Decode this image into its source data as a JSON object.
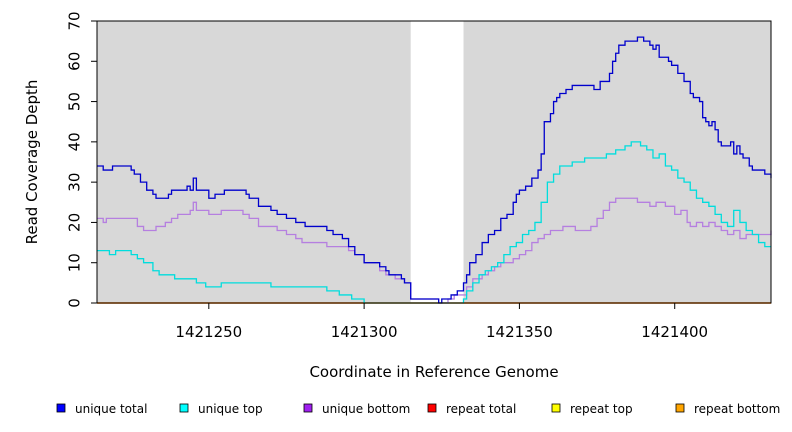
{
  "chart_data": {
    "type": "line",
    "title": "",
    "xlabel": "Coordinate in Reference Genome",
    "ylabel": "Read Coverage Depth",
    "xlim": [
      1421214,
      1421431
    ],
    "ylim": [
      0,
      70
    ],
    "x_ticks": [
      1421250,
      1421300,
      1421350,
      1421400
    ],
    "y_ticks": [
      0,
      10,
      20,
      30,
      40,
      50,
      60,
      70
    ],
    "shaded_regions": [
      [
        1421214,
        1421315
      ],
      [
        1421332,
        1421431
      ]
    ],
    "grid": false,
    "legend_position": "bottom",
    "series": [
      {
        "name": "unique total",
        "color": "#0000cc",
        "legend_color": "#0000ff",
        "points": [
          [
            1421214,
            34
          ],
          [
            1421216,
            33
          ],
          [
            1421219,
            34
          ],
          [
            1421225,
            33
          ],
          [
            1421226,
            32
          ],
          [
            1421228,
            30
          ],
          [
            1421230,
            28
          ],
          [
            1421232,
            27
          ],
          [
            1421233,
            26
          ],
          [
            1421237,
            27
          ],
          [
            1421238,
            28
          ],
          [
            1421242,
            28
          ],
          [
            1421243,
            29
          ],
          [
            1421244,
            28
          ],
          [
            1421245,
            31
          ],
          [
            1421246,
            28
          ],
          [
            1421250,
            26
          ],
          [
            1421252,
            27
          ],
          [
            1421255,
            28
          ],
          [
            1421262,
            27
          ],
          [
            1421263,
            26
          ],
          [
            1421265,
            26
          ],
          [
            1421266,
            24
          ],
          [
            1421270,
            23
          ],
          [
            1421272,
            22
          ],
          [
            1421275,
            21
          ],
          [
            1421278,
            20
          ],
          [
            1421281,
            19
          ],
          [
            1421285,
            19
          ],
          [
            1421288,
            18
          ],
          [
            1421290,
            17
          ],
          [
            1421293,
            16
          ],
          [
            1421295,
            14
          ],
          [
            1421297,
            12
          ],
          [
            1421300,
            10
          ],
          [
            1421303,
            10
          ],
          [
            1421305,
            9
          ],
          [
            1421307,
            8
          ],
          [
            1421308,
            7
          ],
          [
            1421310,
            7
          ],
          [
            1421312,
            6
          ],
          [
            1421313,
            5
          ],
          [
            1421315,
            1
          ],
          [
            1421323,
            1
          ],
          [
            1421324,
            0
          ],
          [
            1421325,
            1
          ],
          [
            1421327,
            1
          ],
          [
            1421328,
            2
          ],
          [
            1421330,
            3
          ],
          [
            1421332,
            5
          ],
          [
            1421333,
            7
          ],
          [
            1421334,
            10
          ],
          [
            1421336,
            12
          ],
          [
            1421338,
            15
          ],
          [
            1421340,
            17
          ],
          [
            1421342,
            18
          ],
          [
            1421344,
            21
          ],
          [
            1421346,
            22
          ],
          [
            1421348,
            25
          ],
          [
            1421349,
            27
          ],
          [
            1421350,
            28
          ],
          [
            1421352,
            29
          ],
          [
            1421354,
            31
          ],
          [
            1421356,
            33
          ],
          [
            1421357,
            37
          ],
          [
            1421358,
            45
          ],
          [
            1421360,
            47
          ],
          [
            1421361,
            50
          ],
          [
            1421362,
            51
          ],
          [
            1421363,
            52
          ],
          [
            1421365,
            53
          ],
          [
            1421367,
            54
          ],
          [
            1421369,
            54
          ],
          [
            1421374,
            53
          ],
          [
            1421376,
            55
          ],
          [
            1421378,
            55
          ],
          [
            1421379,
            57
          ],
          [
            1421380,
            60
          ],
          [
            1421381,
            62
          ],
          [
            1421382,
            64
          ],
          [
            1421384,
            65
          ],
          [
            1421386,
            65
          ],
          [
            1421388,
            66
          ],
          [
            1421390,
            65
          ],
          [
            1421392,
            64
          ],
          [
            1421393,
            63
          ],
          [
            1421394,
            64
          ],
          [
            1421395,
            61
          ],
          [
            1421398,
            60
          ],
          [
            1421399,
            59
          ],
          [
            1421401,
            57
          ],
          [
            1421403,
            55
          ],
          [
            1421405,
            52
          ],
          [
            1421406,
            51
          ],
          [
            1421408,
            50
          ],
          [
            1421409,
            46
          ],
          [
            1421410,
            45
          ],
          [
            1421411,
            44
          ],
          [
            1421412,
            45
          ],
          [
            1421413,
            43
          ],
          [
            1421414,
            40
          ],
          [
            1421415,
            39
          ],
          [
            1421416,
            39
          ],
          [
            1421418,
            40
          ],
          [
            1421419,
            37
          ],
          [
            1421420,
            39
          ],
          [
            1421421,
            37
          ],
          [
            1421422,
            36
          ],
          [
            1421424,
            34
          ],
          [
            1421425,
            33
          ],
          [
            1421427,
            33
          ],
          [
            1421429,
            32
          ],
          [
            1421431,
            31
          ]
        ]
      },
      {
        "name": "unique top",
        "color": "#00dddd",
        "legend_color": "#00ffff",
        "points": [
          [
            1421214,
            13
          ],
          [
            1421218,
            12
          ],
          [
            1421220,
            13
          ],
          [
            1421225,
            12
          ],
          [
            1421227,
            11
          ],
          [
            1421229,
            10
          ],
          [
            1421232,
            8
          ],
          [
            1421234,
            7
          ],
          [
            1421239,
            6
          ],
          [
            1421246,
            5
          ],
          [
            1421249,
            4
          ],
          [
            1421254,
            5
          ],
          [
            1421270,
            4
          ],
          [
            1421280,
            4
          ],
          [
            1421288,
            3
          ],
          [
            1421292,
            2
          ],
          [
            1421296,
            1
          ],
          [
            1421300,
            0
          ],
          [
            1421310,
            0
          ],
          [
            1421315,
            0
          ],
          [
            1421332,
            1
          ],
          [
            1421333,
            3
          ],
          [
            1421335,
            5
          ],
          [
            1421337,
            7
          ],
          [
            1421339,
            8
          ],
          [
            1421341,
            9
          ],
          [
            1421343,
            10
          ],
          [
            1421345,
            12
          ],
          [
            1421347,
            14
          ],
          [
            1421349,
            15
          ],
          [
            1421351,
            17
          ],
          [
            1421353,
            18
          ],
          [
            1421355,
            20
          ],
          [
            1421357,
            25
          ],
          [
            1421359,
            30
          ],
          [
            1421361,
            32
          ],
          [
            1421363,
            34
          ],
          [
            1421367,
            35
          ],
          [
            1421371,
            36
          ],
          [
            1421375,
            36
          ],
          [
            1421378,
            37
          ],
          [
            1421381,
            38
          ],
          [
            1421384,
            39
          ],
          [
            1421386,
            40
          ],
          [
            1421389,
            39
          ],
          [
            1421391,
            38
          ],
          [
            1421393,
            36
          ],
          [
            1421395,
            37
          ],
          [
            1421397,
            34
          ],
          [
            1421399,
            33
          ],
          [
            1421401,
            31
          ],
          [
            1421403,
            30
          ],
          [
            1421405,
            28
          ],
          [
            1421407,
            26
          ],
          [
            1421409,
            25
          ],
          [
            1421411,
            24
          ],
          [
            1421413,
            22
          ],
          [
            1421415,
            20
          ],
          [
            1421417,
            19
          ],
          [
            1421419,
            23
          ],
          [
            1421421,
            20
          ],
          [
            1421423,
            18
          ],
          [
            1421425,
            17
          ],
          [
            1421427,
            15
          ],
          [
            1421429,
            14
          ],
          [
            1421431,
            14
          ]
        ]
      },
      {
        "name": "unique bottom",
        "color": "#b57fe0",
        "legend_color": "#a020f0",
        "points": [
          [
            1421214,
            21
          ],
          [
            1421216,
            20
          ],
          [
            1421217,
            21
          ],
          [
            1421226,
            21
          ],
          [
            1421227,
            19
          ],
          [
            1421229,
            18
          ],
          [
            1421233,
            19
          ],
          [
            1421236,
            20
          ],
          [
            1421238,
            21
          ],
          [
            1421240,
            22
          ],
          [
            1421242,
            22
          ],
          [
            1421244,
            23
          ],
          [
            1421245,
            25
          ],
          [
            1421246,
            23
          ],
          [
            1421250,
            22
          ],
          [
            1421254,
            23
          ],
          [
            1421259,
            23
          ],
          [
            1421261,
            22
          ],
          [
            1421263,
            21
          ],
          [
            1421265,
            21
          ],
          [
            1421266,
            19
          ],
          [
            1421270,
            19
          ],
          [
            1421272,
            18
          ],
          [
            1421275,
            17
          ],
          [
            1421278,
            16
          ],
          [
            1421280,
            15
          ],
          [
            1421285,
            15
          ],
          [
            1421288,
            14
          ],
          [
            1421292,
            14
          ],
          [
            1421295,
            13
          ],
          [
            1421297,
            12
          ],
          [
            1421300,
            10
          ],
          [
            1421303,
            10
          ],
          [
            1421305,
            8
          ],
          [
            1421307,
            7
          ],
          [
            1421310,
            6
          ],
          [
            1421313,
            5
          ],
          [
            1421315,
            1
          ],
          [
            1421323,
            1
          ],
          [
            1421324,
            0
          ],
          [
            1421327,
            1
          ],
          [
            1421329,
            2
          ],
          [
            1421331,
            2
          ],
          [
            1421333,
            4
          ],
          [
            1421335,
            6
          ],
          [
            1421338,
            7
          ],
          [
            1421340,
            8
          ],
          [
            1421342,
            9
          ],
          [
            1421344,
            10
          ],
          [
            1421348,
            11
          ],
          [
            1421350,
            12
          ],
          [
            1421352,
            13
          ],
          [
            1421354,
            15
          ],
          [
            1421356,
            16
          ],
          [
            1421358,
            17
          ],
          [
            1421360,
            18
          ],
          [
            1421364,
            19
          ],
          [
            1421368,
            18
          ],
          [
            1421371,
            18
          ],
          [
            1421373,
            19
          ],
          [
            1421375,
            21
          ],
          [
            1421377,
            23
          ],
          [
            1421379,
            25
          ],
          [
            1421381,
            26
          ],
          [
            1421388,
            25
          ],
          [
            1421392,
            24
          ],
          [
            1421394,
            25
          ],
          [
            1421397,
            24
          ],
          [
            1421400,
            22
          ],
          [
            1421402,
            23
          ],
          [
            1421404,
            20
          ],
          [
            1421405,
            19
          ],
          [
            1421407,
            20
          ],
          [
            1421409,
            19
          ],
          [
            1421411,
            20
          ],
          [
            1421413,
            19
          ],
          [
            1421415,
            18
          ],
          [
            1421417,
            17
          ],
          [
            1421419,
            18
          ],
          [
            1421421,
            16
          ],
          [
            1421423,
            17
          ],
          [
            1421425,
            17
          ],
          [
            1421427,
            17
          ],
          [
            1421429,
            17
          ],
          [
            1421431,
            18
          ]
        ]
      },
      {
        "name": "repeat total",
        "color": "#ff0000",
        "legend_color": "#ff0000",
        "points": [
          [
            1421214,
            0
          ],
          [
            1421431,
            0
          ]
        ]
      },
      {
        "name": "repeat top",
        "color": "#ffff00",
        "legend_color": "#ffff00",
        "points": [
          [
            1421214,
            0
          ],
          [
            1421431,
            0
          ]
        ]
      },
      {
        "name": "repeat bottom",
        "color": "#ffa500",
        "legend_color": "#ffa500",
        "points": [
          [
            1421214,
            0
          ],
          [
            1421431,
            0
          ]
        ]
      }
    ]
  }
}
